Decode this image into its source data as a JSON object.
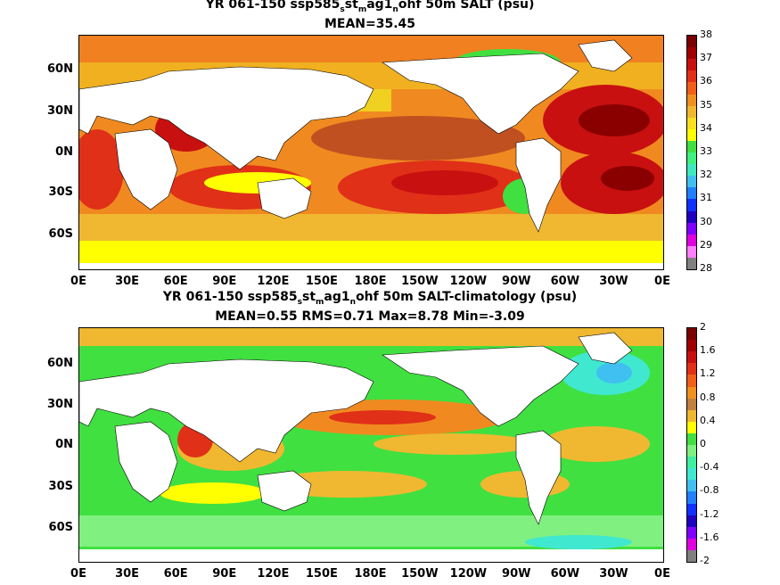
{
  "panel1": {
    "title_parts": [
      "YR 061-150 ssp585",
      "s",
      "st",
      "m",
      "ag1",
      "n",
      "ohf 50m SALT (psu)"
    ],
    "subtitle": "MEAN=35.45",
    "colorbar": {
      "labels": [
        "38",
        "37",
        "36",
        "35",
        "34",
        "33",
        "32",
        "31",
        "30",
        "29",
        "28"
      ],
      "colors": [
        "#7a0000",
        "#a00000",
        "#c81010",
        "#e03018",
        "#f06018",
        "#f09020",
        "#f0b830",
        "#f8e020",
        "#ffff00",
        "#40e040",
        "#40f080",
        "#40e8c0",
        "#40c0f0",
        "#2080ff",
        "#1030ff",
        "#2000c0",
        "#8000ff",
        "#e000e0",
        "#ff80ff",
        "#808080"
      ]
    }
  },
  "panel2": {
    "title": "YR 061-150 ssp585_st_mag1_nohf 50m SALT-climatology (psu)",
    "title_parts": [
      "YR 061-150 ssp585",
      "s",
      "st",
      "m",
      "ag1",
      "n",
      "ohf 50m SALT-climatology (psu)"
    ],
    "subtitle": "MEAN=0.55   RMS=0.71   Max=8.78   Min=-3.09",
    "colorbar": {
      "labels": [
        "2",
        "1.6",
        "1.2",
        "0.8",
        "0.4",
        "0",
        "-0.4",
        "-0.8",
        "-1.2",
        "-1.6",
        "-2"
      ],
      "colors": [
        "#7a0000",
        "#a00000",
        "#c81010",
        "#e03018",
        "#f06018",
        "#f09020",
        "#c08040",
        "#f0b830",
        "#ffff00",
        "#40e040",
        "#80f080",
        "#40f0a0",
        "#40e8d0",
        "#40c0f0",
        "#2080ff",
        "#1030ff",
        "#2000c0",
        "#8000ff",
        "#e000e0",
        "#808080"
      ]
    }
  },
  "lat_labels": [
    "60N",
    "30N",
    "0N",
    "30S",
    "60S"
  ],
  "lon_labels": [
    "0E",
    "30E",
    "60E",
    "90E",
    "120E",
    "150E",
    "180E",
    "150W",
    "120W",
    "90W",
    "60W",
    "30W",
    "0E"
  ]
}
